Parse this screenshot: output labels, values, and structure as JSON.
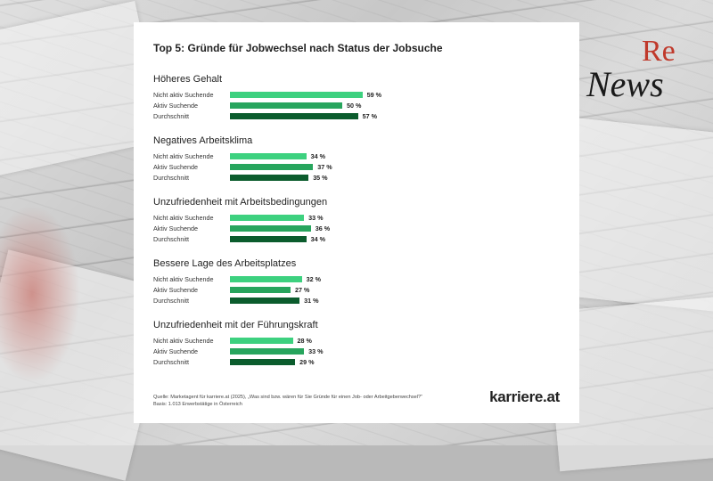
{
  "logo": {
    "re": "Re",
    "news": "News"
  },
  "brand": "karriere.at",
  "source_lines": [
    "Quelle: Marketagent für karriere.at (2025), „Was sind bzw. wären für Sie Gründe für einen Job- oder Arbeitgeberwechsel?“",
    "Basis: 1.013 Erwerbstätige in Österreich"
  ],
  "colors": {
    "Nicht aktiv Suchende": "#3dd17f",
    "Aktiv Suchende": "#27a55d",
    "Durchschnitt": "#0b5c2d"
  },
  "chart_data": {
    "type": "bar",
    "orientation": "horizontal",
    "title": "Top 5: Gründe für Jobwechsel nach Status der Jobsuche",
    "unit": "%",
    "series_names": [
      "Nicht aktiv Suchende",
      "Aktiv Suchende",
      "Durchschnitt"
    ],
    "groups": [
      {
        "category": "Höheres Gehalt",
        "values": [
          59,
          50,
          57
        ]
      },
      {
        "category": "Negatives Arbeitsklima",
        "values": [
          34,
          37,
          35
        ]
      },
      {
        "category": "Unzufriedenheit mit Arbeitsbedingungen",
        "values": [
          33,
          36,
          34
        ]
      },
      {
        "category": "Bessere Lage des Arbeitsplatzes",
        "values": [
          32,
          27,
          31
        ]
      },
      {
        "category": "Unzufriedenheit mit der Führungskraft",
        "values": [
          28,
          33,
          29
        ]
      }
    ]
  }
}
